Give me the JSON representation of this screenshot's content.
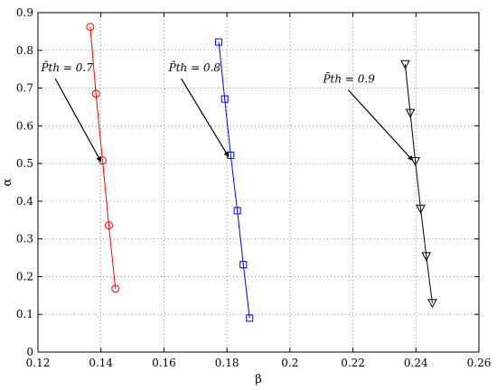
{
  "chart_data": {
    "type": "line",
    "xlabel": "β",
    "ylabel": "α",
    "xlim": [
      0.12,
      0.26
    ],
    "ylim": [
      0,
      0.9
    ],
    "xticks": [
      "0.12",
      "0.14",
      "0.16",
      "0.18",
      "0.2",
      "0.22",
      "0.24",
      "0.26"
    ],
    "yticks": [
      "0",
      "0.1",
      "0.2",
      "0.3",
      "0.4",
      "0.5",
      "0.6",
      "0.7",
      "0.8",
      "0.9"
    ],
    "grid": true,
    "series": [
      {
        "color": "#ff0000",
        "marker": "circle",
        "points": [
          [
            0.1366,
            0.862
          ],
          [
            0.1384,
            0.685
          ],
          [
            0.1405,
            0.508
          ],
          [
            0.1425,
            0.336
          ],
          [
            0.1446,
            0.168
          ]
        ]
      },
      {
        "color": "#0000ff",
        "marker": "square",
        "points": [
          [
            0.1774,
            0.822
          ],
          [
            0.1793,
            0.671
          ],
          [
            0.1812,
            0.522
          ],
          [
            0.1833,
            0.375
          ],
          [
            0.1852,
            0.232
          ],
          [
            0.1872,
            0.09
          ]
        ]
      },
      {
        "color": "#000000",
        "marker": "triangle-down",
        "points": [
          [
            0.2366,
            0.763
          ],
          [
            0.2382,
            0.634
          ],
          [
            0.2398,
            0.506
          ],
          [
            0.2415,
            0.38
          ],
          [
            0.2433,
            0.254
          ],
          [
            0.2452,
            0.13
          ]
        ]
      }
    ],
    "annotations": [
      {
        "text": "P̄th = 0.7",
        "text_at": [
          0.121,
          0.745
        ],
        "arrow_from": [
          0.1255,
          0.725
        ],
        "arrow_to": [
          0.14,
          0.505
        ]
      },
      {
        "text": "P̄th = 0.8",
        "text_at": [
          0.1615,
          0.745
        ],
        "arrow_from": [
          0.1655,
          0.725
        ],
        "arrow_to": [
          0.1805,
          0.518
        ]
      },
      {
        "text": "P̄th = 0.9",
        "text_at": [
          0.2105,
          0.715
        ],
        "arrow_from": [
          0.2185,
          0.695
        ],
        "arrow_to": [
          0.239,
          0.508
        ]
      }
    ]
  }
}
